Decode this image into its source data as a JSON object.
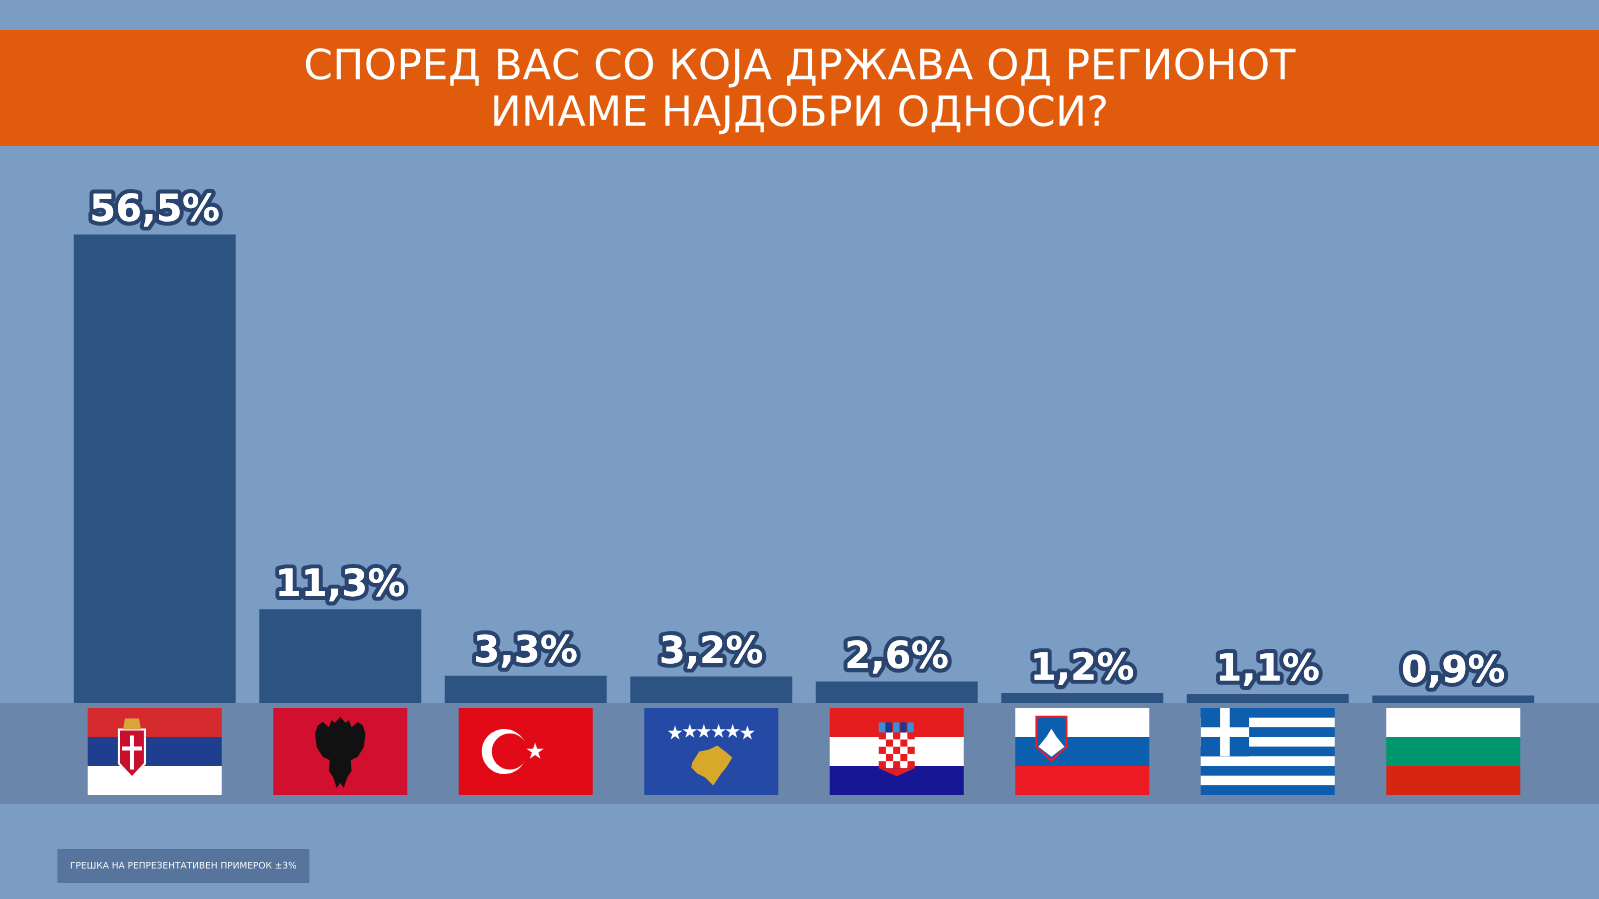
{
  "chart_data": {
    "type": "bar",
    "title": "СПОРЕД ВАС СО КОЈА ДРЖАВА ОД РЕГИОНОТ\nИМАМЕ НАЈДОБРИ ОДНОСИ?",
    "categories": [
      null,
      null,
      null,
      null,
      null,
      null,
      null,
      null
    ],
    "values": [
      56.5,
      11.3,
      3.3,
      3.2,
      2.6,
      1.2,
      1.1,
      0.9
    ],
    "value_labels": [
      "56,5%",
      "11,3%",
      "3,3%",
      "3,2%",
      "2,6%",
      "1,2%",
      "1,1%",
      "0,9%"
    ],
    "color": "#2c5382",
    "annotations": [
      "ГРЕШКА НА РЕПРЕЗЕНТАТИВЕН ПРИМЕРОК ±3%"
    ]
  }
}
